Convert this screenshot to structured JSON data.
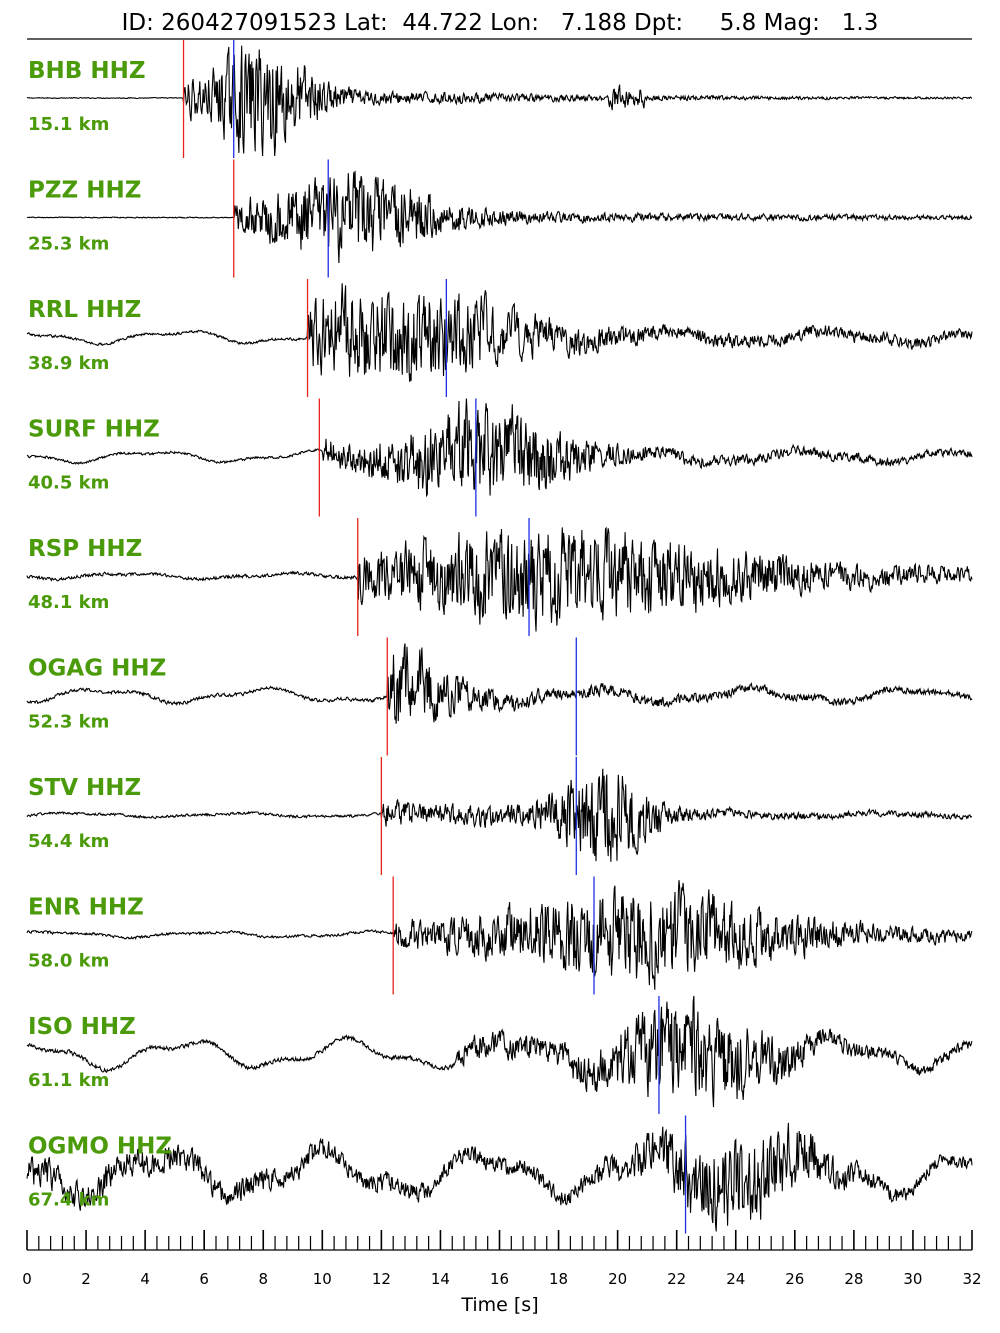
{
  "title": "ID: 260427091523 Lat:  44.722 Lon:   7.188 Dpt:     5.8 Mag:   1.3",
  "colors": {
    "label": "#4a9a0a",
    "trace": "#000000",
    "p_pick": "#e8241c",
    "s_pick": "#1c2ee8"
  },
  "chart_data": {
    "type": "line",
    "title": "ID: 260427091523 Lat:  44.722 Lon:   7.188 Dpt:     5.8 Mag:   1.3",
    "xlabel": "Time [s]",
    "ylabel": "",
    "xlim": [
      0,
      32
    ],
    "x_major_ticks": [
      0,
      2,
      4,
      6,
      8,
      10,
      12,
      14,
      16,
      18,
      20,
      22,
      24,
      26,
      28,
      30,
      32
    ],
    "x_minor_step": 0.4,
    "grid": false,
    "traces": [
      {
        "station": "BHB HHZ",
        "distance": "15.1 km",
        "p_pick": 5.3,
        "s_pick": 7.0,
        "onset": 5.3,
        "noise": 0.01,
        "bg_amp": 0.0,
        "peak": 8.0,
        "peak_amp": 1.0,
        "decay": 3.5,
        "late_burst": 20.3
      },
      {
        "station": "PZZ HHZ",
        "distance": "25.3 km",
        "p_pick": 7.0,
        "s_pick": 10.2,
        "onset": 7.0,
        "noise": 0.01,
        "bg_amp": 0.0,
        "peak": 11.0,
        "peak_amp": 0.75,
        "decay": 6.0
      },
      {
        "station": "RRL HHZ",
        "distance": "38.9 km",
        "p_pick": 9.5,
        "s_pick": 14.2,
        "onset": 9.5,
        "noise": 0.03,
        "bg_amp": 0.09,
        "peak": 12.5,
        "peak_amp": 0.8,
        "decay": 9.0
      },
      {
        "station": "SURF HHZ",
        "distance": "40.5 km",
        "p_pick": 9.9,
        "s_pick": 15.2,
        "onset": 10.0,
        "noise": 0.03,
        "bg_amp": 0.08,
        "peak": 15.5,
        "peak_amp": 0.85,
        "decay": 6.0
      },
      {
        "station": "RSP HHZ",
        "distance": "48.1 km",
        "p_pick": 11.2,
        "s_pick": 17.0,
        "onset": 11.2,
        "noise": 0.04,
        "bg_amp": 0.04,
        "peak": 18.0,
        "peak_amp": 0.8,
        "decay": 14.0
      },
      {
        "station": "OGAG HHZ",
        "distance": "52.3 km",
        "p_pick": 12.2,
        "s_pick": 18.6,
        "onset": 12.2,
        "noise": 0.04,
        "bg_amp": 0.1,
        "peak": 12.4,
        "peak_amp": 0.7,
        "decay": 4.0
      },
      {
        "station": "STV HHZ",
        "distance": "54.4 km",
        "p_pick": 12.0,
        "s_pick": 18.6,
        "onset": 12.0,
        "noise": 0.03,
        "bg_amp": 0.03,
        "peak": 19.5,
        "peak_amp": 0.9,
        "decay": 3.5
      },
      {
        "station": "ENR HHZ",
        "distance": "58.0 km",
        "p_pick": 12.4,
        "s_pick": 19.2,
        "onset": 12.4,
        "noise": 0.03,
        "bg_amp": 0.04,
        "peak": 21.0,
        "peak_amp": 0.8,
        "decay": 10.0
      },
      {
        "station": "ISO HHZ",
        "distance": "61.1 km",
        "p_pick": null,
        "s_pick": 21.4,
        "onset": 14.5,
        "noise": 0.05,
        "bg_amp": 0.2,
        "peak": 22.5,
        "peak_amp": 0.85,
        "decay": 6.0
      },
      {
        "station": "OGMO HHZ",
        "distance": "67.4 km",
        "p_pick": null,
        "s_pick": 22.3,
        "onset": 0.0,
        "noise": 0.12,
        "bg_amp": 0.3,
        "peak": 24.0,
        "peak_amp": 0.8,
        "decay": 6.0
      }
    ]
  }
}
